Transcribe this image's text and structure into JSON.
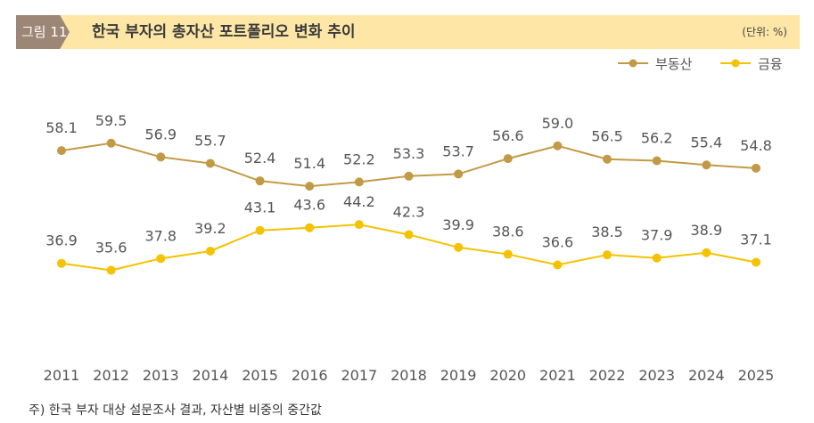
{
  "header": {
    "figure_label": "그림 11",
    "title": "한국 부자의 총자산 포트폴리오 변화 추이",
    "unit": "(단위: %)"
  },
  "note": "주) 한국 부자 대상 설문조사 결과, 자산별 비중의 중간값",
  "colors": {
    "real_estate": "#c29a45",
    "finance": "#f5c200"
  },
  "chart_data": {
    "type": "line",
    "title": "한국 부자의 총자산 포트폴리오 변화 추이",
    "xlabel": "",
    "ylabel": "%",
    "legend_position": "top-right",
    "categories": [
      "2011",
      "2012",
      "2013",
      "2014",
      "2015",
      "2016",
      "2017",
      "2018",
      "2019",
      "2020",
      "2021",
      "2022",
      "2023",
      "2024",
      "2025"
    ],
    "series": [
      {
        "name": "부동산",
        "values": [
          58.1,
          59.5,
          56.9,
          55.7,
          52.4,
          51.4,
          52.2,
          53.3,
          53.7,
          56.6,
          59.0,
          56.5,
          56.2,
          55.4,
          54.8
        ]
      },
      {
        "name": "금융",
        "values": [
          36.9,
          35.6,
          37.8,
          39.2,
          43.1,
          43.6,
          44.2,
          42.3,
          39.9,
          38.6,
          36.6,
          38.5,
          37.9,
          38.9,
          37.1
        ]
      }
    ]
  }
}
